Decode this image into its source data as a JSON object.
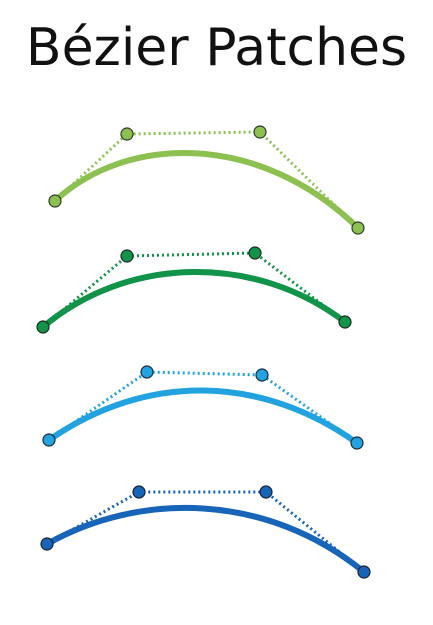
{
  "title": "Bézier Patches",
  "curves": [
    {
      "name": "curve-light-green",
      "color": "#8CC152",
      "control_dots_color": "#8CC152"
    },
    {
      "name": "curve-green",
      "color": "#12934A",
      "control_dots_color": "#12934A"
    },
    {
      "name": "curve-light-blue",
      "color": "#22A3E0",
      "control_dots_color": "#22A3E0"
    },
    {
      "name": "curve-blue",
      "color": "#1764B8",
      "control_dots_color": "#1764B8"
    }
  ]
}
